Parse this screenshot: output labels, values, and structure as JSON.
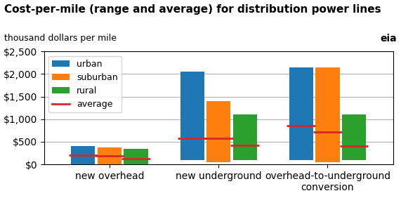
{
  "chart_data": {
    "type": "range_bar",
    "title": "Cost-per-mile (range and average) for distribution power lines",
    "subtitle": "thousand dollars per mile",
    "annotations": [
      "eia"
    ],
    "categories": [
      "new overhead",
      "new underground",
      "overhead-to-underground\nconversion"
    ],
    "series": [
      {
        "name": "urban",
        "values": [
          [
            0,
            400
          ],
          [
            100,
            2050
          ],
          [
            100,
            2150
          ]
        ],
        "averages": [
          200,
          580,
          850
        ]
      },
      {
        "name": "suburban",
        "values": [
          [
            0,
            380
          ],
          [
            50,
            1400
          ],
          [
            50,
            2150
          ]
        ],
        "averages": [
          180,
          580,
          720
        ]
      },
      {
        "name": "rural",
        "values": [
          [
            0,
            340
          ],
          [
            100,
            1100
          ],
          [
            100,
            1100
          ]
        ],
        "averages": [
          130,
          420,
          400
        ]
      }
    ],
    "average_label": "average",
    "ylim": [
      0,
      2500
    ],
    "yticks": [
      {
        "value": 0,
        "label": "$0"
      },
      {
        "value": 500,
        "label": "$500"
      },
      {
        "value": 1000,
        "label": "$1,000"
      },
      {
        "value": 1500,
        "label": "$1,500"
      },
      {
        "value": 2000,
        "label": "$2,000"
      },
      {
        "value": 2500,
        "label": "$2,500"
      }
    ],
    "grid": true,
    "legend": "upper left"
  }
}
